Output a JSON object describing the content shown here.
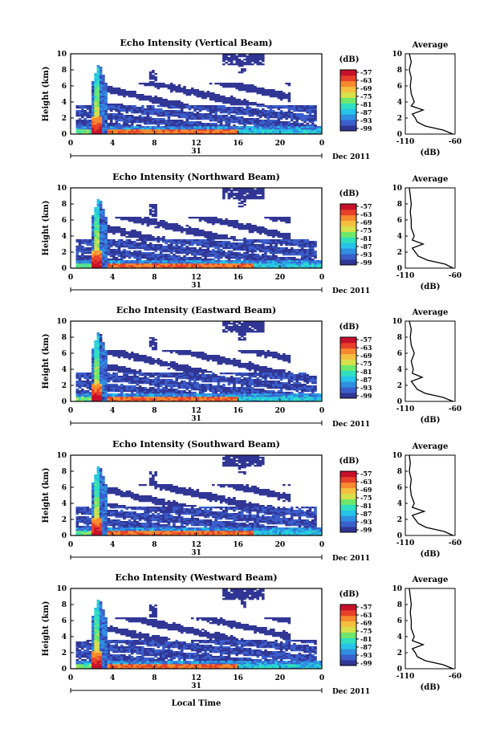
{
  "footer": {
    "xlabel": "Local Time"
  },
  "colorbar": {
    "unit": "(dB)",
    "ticks": [
      "-57",
      "-63",
      "-69",
      "-75",
      "-81",
      "-87",
      "-93",
      "-99"
    ],
    "colors": [
      "#313695",
      "#3a5fcd",
      "#2f8fe0",
      "#25c4e8",
      "#2fe0c0",
      "#6fe86a",
      "#d8e04a",
      "#f5c040",
      "#f78a2e",
      "#e8402a",
      "#c8102a"
    ]
  },
  "common": {
    "ylabel": "Height (km)",
    "y_ticks": [
      "0",
      "2",
      "4",
      "6",
      "8",
      "10"
    ],
    "x_ticks": [
      "0",
      "4",
      "8",
      "12",
      "16",
      "20",
      "0"
    ],
    "day_label": "31",
    "date_label": "Dec 2011",
    "avg_title": "Average",
    "avg_xticks": [
      "-110",
      "-60"
    ],
    "avg_xlabel": "(dB)"
  },
  "chart_data": [
    {
      "type": "heatmap",
      "title": "Echo Intensity (Vertical Beam)",
      "xlabel": "",
      "ylabel": "Height (km)",
      "xlim": [
        0,
        24
      ],
      "ylim": [
        0,
        10
      ],
      "zlim": [
        -99,
        -57
      ],
      "colorbar_label": "(dB)",
      "average_profile": {
        "title": "Average",
        "xlim": [
          -110,
          -60
        ],
        "height_km": [
          0,
          0.5,
          1,
          1.5,
          2,
          2.5,
          3,
          3.5,
          4,
          5,
          6,
          7,
          8,
          9,
          10
        ],
        "value_db": [
          -62,
          -72,
          -90,
          -98,
          -100,
          -103,
          -92,
          -104,
          -101,
          -104,
          -105,
          -104,
          -106,
          -104,
          -106
        ]
      }
    },
    {
      "type": "heatmap",
      "title": "Echo Intensity (Northward Beam)",
      "xlabel": "",
      "ylabel": "Height (km)",
      "xlim": [
        0,
        24
      ],
      "ylim": [
        0,
        10
      ],
      "zlim": [
        -99,
        -57
      ],
      "colorbar_label": "(dB)",
      "average_profile": {
        "title": "Average",
        "xlim": [
          -110,
          -60
        ],
        "height_km": [
          0,
          0.5,
          1,
          1.5,
          2,
          2.5,
          3,
          3.5,
          4,
          5,
          6,
          7,
          8,
          9,
          10
        ],
        "value_db": [
          -62,
          -70,
          -88,
          -97,
          -100,
          -103,
          -92,
          -103,
          -101,
          -104,
          -104,
          -105,
          -104,
          -105,
          -106
        ]
      }
    },
    {
      "type": "heatmap",
      "title": "Echo Intensity (Eastward Beam)",
      "xlabel": "",
      "ylabel": "Height (km)",
      "xlim": [
        0,
        24
      ],
      "ylim": [
        0,
        10
      ],
      "zlim": [
        -99,
        -57
      ],
      "colorbar_label": "(dB)",
      "average_profile": {
        "title": "Average",
        "xlim": [
          -110,
          -60
        ],
        "height_km": [
          0,
          0.5,
          1,
          1.5,
          2,
          2.5,
          3,
          3.5,
          4,
          5,
          6,
          7,
          8,
          9,
          10
        ],
        "value_db": [
          -62,
          -72,
          -90,
          -98,
          -101,
          -104,
          -93,
          -103,
          -102,
          -104,
          -101,
          -104,
          -105,
          -104,
          -106
        ]
      }
    },
    {
      "type": "heatmap",
      "title": "Echo Intensity (Southward Beam)",
      "xlabel": "",
      "ylabel": "Height (km)",
      "xlim": [
        0,
        24
      ],
      "ylim": [
        0,
        10
      ],
      "zlim": [
        -99,
        -57
      ],
      "colorbar_label": "(dB)",
      "average_profile": {
        "title": "Average",
        "xlim": [
          -110,
          -60
        ],
        "height_km": [
          0,
          0.5,
          1,
          1.5,
          2,
          2.5,
          3,
          3.5,
          4,
          5,
          6,
          7,
          8,
          9,
          10
        ],
        "value_db": [
          -62,
          -71,
          -89,
          -97,
          -100,
          -103,
          -91,
          -103,
          -101,
          -104,
          -105,
          -104,
          -106,
          -105,
          -106
        ]
      }
    },
    {
      "type": "heatmap",
      "title": "Echo Intensity (Westward Beam)",
      "xlabel": "",
      "ylabel": "Height (km)",
      "xlim": [
        0,
        24
      ],
      "ylim": [
        0,
        10
      ],
      "zlim": [
        -99,
        -57
      ],
      "colorbar_label": "(dB)",
      "average_profile": {
        "title": "Average",
        "xlim": [
          -110,
          -60
        ],
        "height_km": [
          0,
          0.5,
          1,
          1.5,
          2,
          2.5,
          3,
          3.5,
          4,
          5,
          6,
          7,
          8,
          9,
          10
        ],
        "value_db": [
          -62,
          -72,
          -90,
          -98,
          -100,
          -103,
          -92,
          -103,
          -101,
          -104,
          -104,
          -105,
          -104,
          -105,
          -106
        ]
      }
    }
  ]
}
